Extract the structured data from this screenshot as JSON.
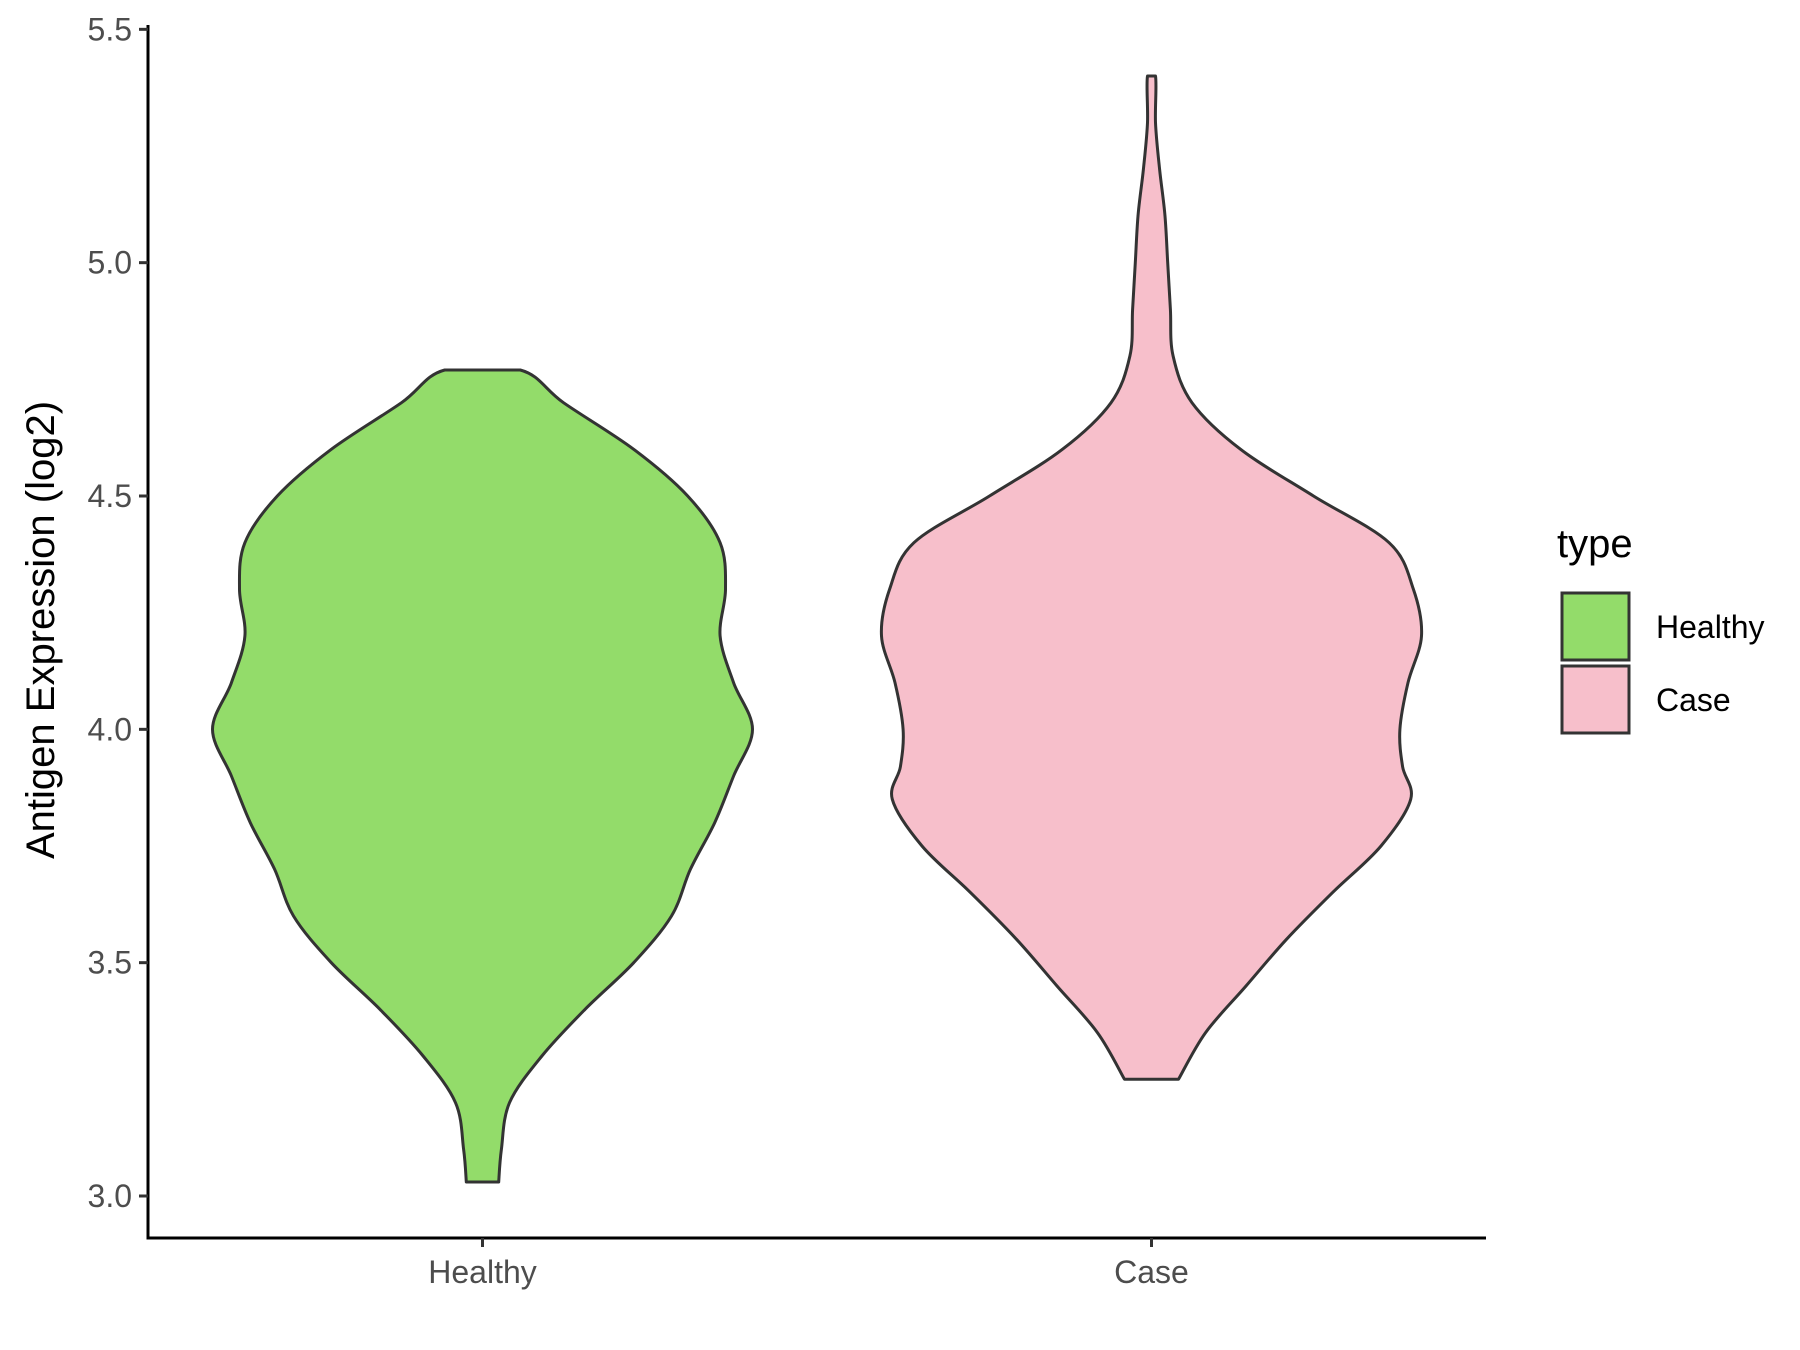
{
  "chart_data": {
    "type": "violin",
    "ylabel": "Antigen Expression (log2)",
    "xlabel": "",
    "categories": [
      "Healthy",
      "Case"
    ],
    "ylim": [
      2.91,
      5.52
    ],
    "yticks": [
      "3.0",
      "3.5",
      "4.0",
      "4.5",
      "5.0",
      "5.5"
    ],
    "ytick_values": [
      3.0,
      3.5,
      4.0,
      4.5,
      5.0,
      5.5
    ],
    "grid": false,
    "legend": {
      "title": "type",
      "position": "right",
      "items": [
        {
          "label": "Healthy",
          "color": "#93dc6a"
        },
        {
          "label": "Case",
          "color": "#f7bfcb"
        }
      ]
    },
    "outline_color": "#333333",
    "series": [
      {
        "name": "Healthy",
        "color": "#93dc6a",
        "min": 3.03,
        "max": 4.77,
        "density_relative_width": [
          [
            3.03,
            0.06
          ],
          [
            3.1,
            0.07
          ],
          [
            3.2,
            0.1
          ],
          [
            3.3,
            0.22
          ],
          [
            3.4,
            0.38
          ],
          [
            3.5,
            0.56
          ],
          [
            3.6,
            0.7
          ],
          [
            3.7,
            0.77
          ],
          [
            3.8,
            0.86
          ],
          [
            3.9,
            0.93
          ],
          [
            4.0,
            1.0
          ],
          [
            4.1,
            0.93
          ],
          [
            4.2,
            0.88
          ],
          [
            4.3,
            0.9
          ],
          [
            4.4,
            0.88
          ],
          [
            4.5,
            0.76
          ],
          [
            4.6,
            0.56
          ],
          [
            4.7,
            0.3
          ],
          [
            4.77,
            0.14
          ]
        ]
      },
      {
        "name": "Case",
        "color": "#f7bfcb",
        "min": 3.25,
        "max": 5.4,
        "density_relative_width": [
          [
            3.25,
            0.1
          ],
          [
            3.35,
            0.2
          ],
          [
            3.45,
            0.35
          ],
          [
            3.55,
            0.5
          ],
          [
            3.65,
            0.67
          ],
          [
            3.75,
            0.85
          ],
          [
            3.85,
            0.96
          ],
          [
            3.92,
            0.93
          ],
          [
            4.0,
            0.92
          ],
          [
            4.1,
            0.95
          ],
          [
            4.2,
            1.0
          ],
          [
            4.3,
            0.97
          ],
          [
            4.4,
            0.88
          ],
          [
            4.5,
            0.6
          ],
          [
            4.6,
            0.33
          ],
          [
            4.7,
            0.15
          ],
          [
            4.8,
            0.08
          ],
          [
            4.9,
            0.07
          ],
          [
            5.0,
            0.06
          ],
          [
            5.1,
            0.05
          ],
          [
            5.2,
            0.03
          ],
          [
            5.3,
            0.015
          ],
          [
            5.4,
            0.015
          ]
        ]
      }
    ]
  }
}
